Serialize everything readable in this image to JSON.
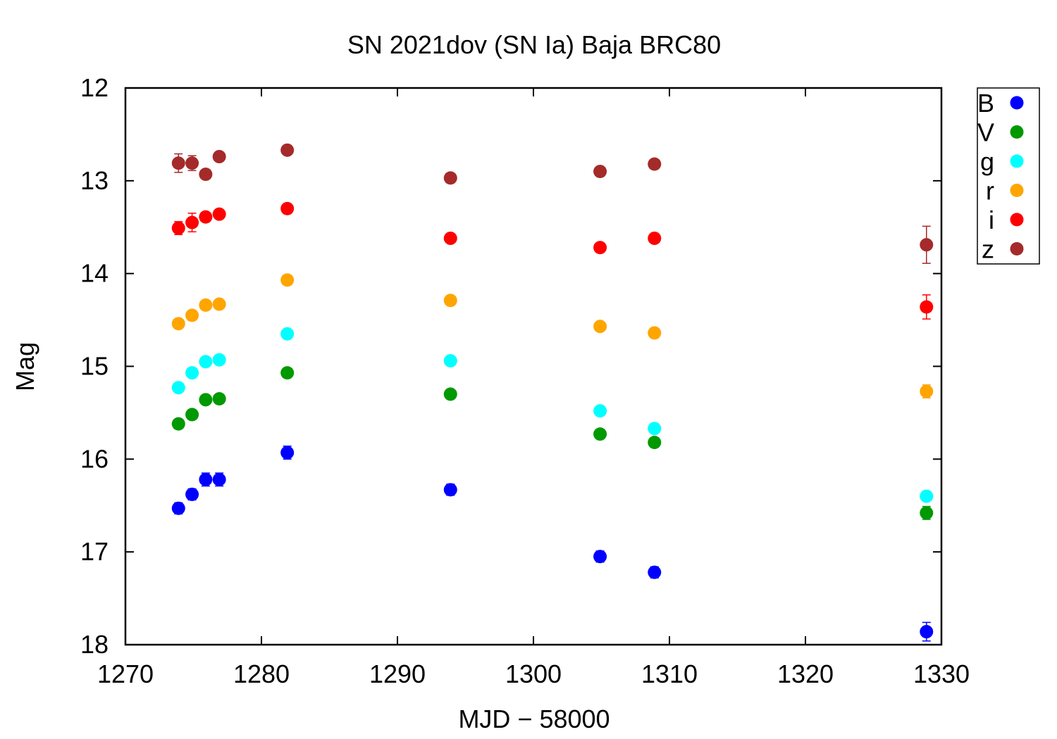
{
  "chart_data": {
    "type": "scatter",
    "title": "SN 2021dov (SN Ia) Baja BRC80",
    "xlabel": "MJD − 58000",
    "ylabel": "Mag",
    "xlim": [
      1270,
      1330
    ],
    "ylim": [
      12,
      18
    ],
    "y_inverted": true,
    "x_ticks": [
      "1270",
      "1280",
      "1290",
      "1300",
      "1310",
      "1320",
      "1330"
    ],
    "y_ticks": [
      "12",
      "13",
      "14",
      "15",
      "16",
      "17",
      "18"
    ],
    "grid": false,
    "legend_position": "outside-top-right",
    "series": [
      {
        "name": "B",
        "color": "#0000ff",
        "points": [
          {
            "x": 1273.9,
            "y": 16.53,
            "err": 0.06
          },
          {
            "x": 1274.9,
            "y": 16.38,
            "err": 0.06
          },
          {
            "x": 1275.9,
            "y": 16.22,
            "err": 0.07
          },
          {
            "x": 1276.9,
            "y": 16.22,
            "err": 0.07
          },
          {
            "x": 1281.9,
            "y": 15.93,
            "err": 0.07
          },
          {
            "x": 1293.9,
            "y": 16.33,
            "err": 0.06
          },
          {
            "x": 1304.9,
            "y": 17.05,
            "err": 0.06
          },
          {
            "x": 1308.9,
            "y": 17.22,
            "err": 0.06
          },
          {
            "x": 1328.9,
            "y": 17.86,
            "err": 0.1
          }
        ]
      },
      {
        "name": "V",
        "color": "#009900",
        "points": [
          {
            "x": 1273.9,
            "y": 15.62,
            "err": 0.03
          },
          {
            "x": 1274.9,
            "y": 15.52,
            "err": 0.03
          },
          {
            "x": 1275.9,
            "y": 15.36,
            "err": 0.03
          },
          {
            "x": 1276.9,
            "y": 15.35,
            "err": 0.03
          },
          {
            "x": 1281.9,
            "y": 15.07,
            "err": 0.03
          },
          {
            "x": 1293.9,
            "y": 15.3,
            "err": 0.03
          },
          {
            "x": 1304.9,
            "y": 15.73,
            "err": 0.03
          },
          {
            "x": 1308.9,
            "y": 15.82,
            "err": 0.03
          },
          {
            "x": 1328.9,
            "y": 16.58,
            "err": 0.07
          }
        ]
      },
      {
        "name": "g",
        "color": "#00ffff",
        "points": [
          {
            "x": 1273.9,
            "y": 15.23,
            "err": 0.03
          },
          {
            "x": 1274.9,
            "y": 15.07,
            "err": 0.03
          },
          {
            "x": 1275.9,
            "y": 14.95,
            "err": 0.03
          },
          {
            "x": 1276.9,
            "y": 14.93,
            "err": 0.03
          },
          {
            "x": 1281.9,
            "y": 14.65,
            "err": 0.03
          },
          {
            "x": 1293.9,
            "y": 14.94,
            "err": 0.03
          },
          {
            "x": 1304.9,
            "y": 15.48,
            "err": 0.03
          },
          {
            "x": 1308.9,
            "y": 15.67,
            "err": 0.03
          },
          {
            "x": 1328.9,
            "y": 16.4,
            "err": 0.05
          }
        ]
      },
      {
        "name": "r",
        "color": "#ffa500",
        "points": [
          {
            "x": 1273.9,
            "y": 14.54,
            "err": 0.03
          },
          {
            "x": 1274.9,
            "y": 14.45,
            "err": 0.03
          },
          {
            "x": 1275.9,
            "y": 14.34,
            "err": 0.03
          },
          {
            "x": 1276.9,
            "y": 14.33,
            "err": 0.03
          },
          {
            "x": 1281.9,
            "y": 14.07,
            "err": 0.03
          },
          {
            "x": 1293.9,
            "y": 14.29,
            "err": 0.03
          },
          {
            "x": 1304.9,
            "y": 14.57,
            "err": 0.03
          },
          {
            "x": 1308.9,
            "y": 14.64,
            "err": 0.03
          },
          {
            "x": 1328.9,
            "y": 15.27,
            "err": 0.07
          }
        ]
      },
      {
        "name": "i",
        "color": "#ff0000",
        "points": [
          {
            "x": 1273.9,
            "y": 13.51,
            "err": 0.07
          },
          {
            "x": 1274.9,
            "y": 13.45,
            "err": 0.1
          },
          {
            "x": 1275.9,
            "y": 13.39,
            "err": 0.04
          },
          {
            "x": 1276.9,
            "y": 13.36,
            "err": 0.04
          },
          {
            "x": 1281.9,
            "y": 13.3,
            "err": 0.03
          },
          {
            "x": 1293.9,
            "y": 13.62,
            "err": 0.03
          },
          {
            "x": 1304.9,
            "y": 13.72,
            "err": 0.03
          },
          {
            "x": 1308.9,
            "y": 13.62,
            "err": 0.03
          },
          {
            "x": 1328.9,
            "y": 14.36,
            "err": 0.13
          }
        ]
      },
      {
        "name": "z",
        "color": "#a52a2a",
        "points": [
          {
            "x": 1273.9,
            "y": 12.81,
            "err": 0.1
          },
          {
            "x": 1274.9,
            "y": 12.81,
            "err": 0.08
          },
          {
            "x": 1275.9,
            "y": 12.93,
            "err": 0.04
          },
          {
            "x": 1276.9,
            "y": 12.74,
            "err": 0.04
          },
          {
            "x": 1281.9,
            "y": 12.67,
            "err": 0.03
          },
          {
            "x": 1293.9,
            "y": 12.97,
            "err": 0.03
          },
          {
            "x": 1304.9,
            "y": 12.9,
            "err": 0.03
          },
          {
            "x": 1308.9,
            "y": 12.82,
            "err": 0.03
          },
          {
            "x": 1328.9,
            "y": 13.69,
            "err": 0.2
          }
        ]
      }
    ]
  }
}
